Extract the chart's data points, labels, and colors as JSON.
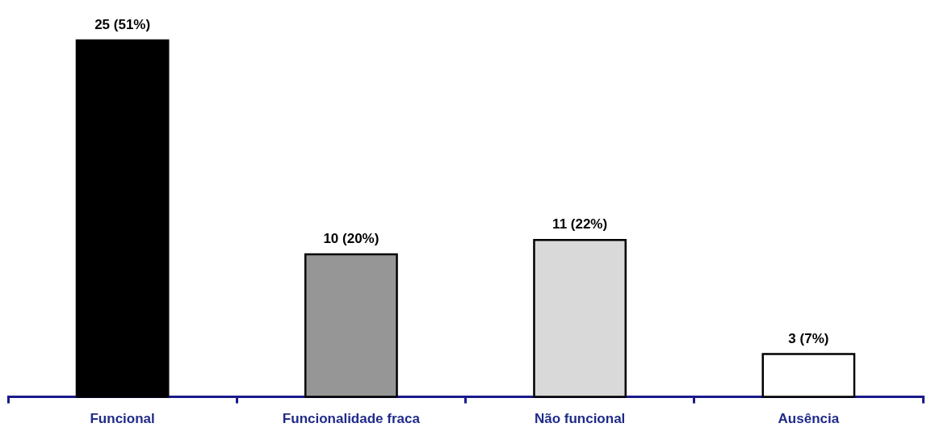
{
  "chart_data": {
    "type": "bar",
    "categories": [
      "Funcional",
      "Funcionalidade fraca",
      "Não funcional",
      "Ausência"
    ],
    "values": [
      25,
      10,
      11,
      3
    ],
    "colors": [
      "#000000",
      "#969696",
      "#d9d9d9",
      "#ffffff"
    ],
    "value_labels": [
      "25 (51%)",
      "10 (20%)",
      "11 (22%)",
      "3 (7%)"
    ]
  }
}
